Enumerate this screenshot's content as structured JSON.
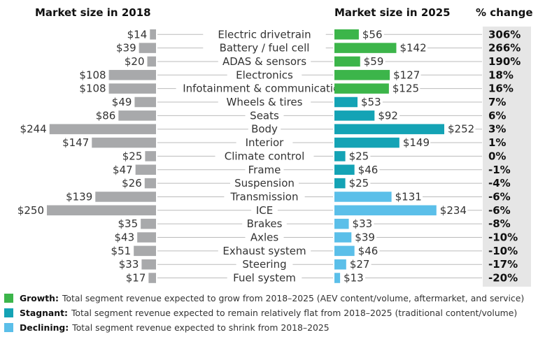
{
  "chart_data": {
    "type": "bar",
    "headers": {
      "left": "Market size in 2018",
      "right": "Market size in 2025",
      "change": "% change"
    },
    "currency_prefix": "$",
    "categories": [
      "Electric drivetrain",
      "Battery / fuel cell",
      "ADAS & sensors",
      "Electronics",
      "Infotainment & communication",
      "Wheels & tires",
      "Seats",
      "Body",
      "Interior",
      "Climate control",
      "Frame",
      "Suspension",
      "Transmission",
      "ICE",
      "Brakes",
      "Axles",
      "Exhaust system",
      "Steering",
      "Fuel system"
    ],
    "series": [
      {
        "name": "Market size in 2018",
        "values": [
          14,
          39,
          20,
          108,
          108,
          49,
          86,
          244,
          147,
          25,
          47,
          26,
          139,
          250,
          35,
          43,
          51,
          33,
          17
        ]
      },
      {
        "name": "Market size in 2025",
        "values": [
          56,
          142,
          59,
          127,
          125,
          53,
          92,
          252,
          149,
          25,
          46,
          25,
          131,
          234,
          33,
          39,
          46,
          27,
          13
        ]
      }
    ],
    "pct_change": [
      "306%",
      "266%",
      "190%",
      "18%",
      "16%",
      "7%",
      "6%",
      "3%",
      "1%",
      "0%",
      "-1%",
      "-4%",
      "-6%",
      "-6%",
      "-8%",
      "-10%",
      "-10%",
      "-17%",
      "-20%"
    ],
    "group": [
      "growth",
      "growth",
      "growth",
      "growth",
      "growth",
      "stagnant",
      "stagnant",
      "stagnant",
      "stagnant",
      "stagnant",
      "stagnant",
      "stagnant",
      "declining",
      "declining",
      "declining",
      "declining",
      "declining",
      "declining",
      "declining"
    ],
    "colors": {
      "growth": "#3cb54a",
      "stagnant": "#14a3b5",
      "declining": "#5bbfe9",
      "left_bar": "#a8a9ab",
      "leader": "#bbbbbb",
      "change_bg": "#e6e6e6"
    },
    "legend": [
      {
        "group": "growth",
        "label": "Growth:",
        "text": "Total segment revenue expected to grow from 2018–2025 (AEV content/volume, aftermarket, and service)"
      },
      {
        "group": "stagnant",
        "label": "Stagnant:",
        "text": "Total segment revenue expected to remain relatively flat from 2018–2025 (traditional content/volume)"
      },
      {
        "group": "declining",
        "label": "Declining:",
        "text": "Total segment revenue expected to shrink from 2018–2025"
      }
    ]
  }
}
